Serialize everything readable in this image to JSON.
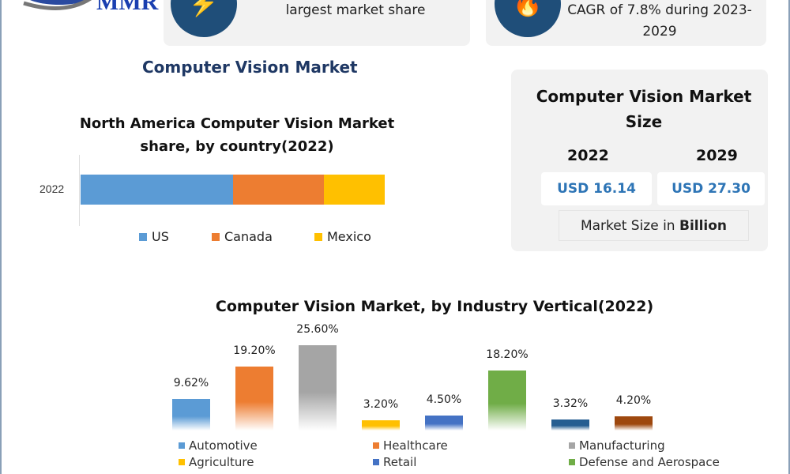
{
  "header": {
    "logo_text": "MMR",
    "card1": {
      "icon": "lightning-icon",
      "text": "largest market share"
    },
    "card2": {
      "icon": "flame-icon",
      "text_line1": "CAGR of 7.8% during 2023-",
      "text_line2": "2029"
    }
  },
  "main_title": "Computer Vision Market",
  "market_size": {
    "title_line1": "Computer Vision Market",
    "title_line2": "Size",
    "years": [
      "2022",
      "2029"
    ],
    "values": [
      "USD 16.14",
      "USD 27.30"
    ],
    "unit_prefix": "Market Size in ",
    "unit_bold": "Billion"
  },
  "chart_data": [
    {
      "type": "bar",
      "orientation": "horizontal-stacked",
      "title_line1": "North America Computer Vision Market",
      "title_line2": "share, by country(2022)",
      "categories": [
        "2022"
      ],
      "series": [
        {
          "name": "US",
          "values": [
            50
          ],
          "color": "#5b9bd5"
        },
        {
          "name": "Canada",
          "values": [
            30
          ],
          "color": "#ed7d31"
        },
        {
          "name": "Mexico",
          "values": [
            20
          ],
          "color": "#ffc000"
        }
      ],
      "legend": "bottom"
    },
    {
      "type": "bar",
      "title": "Computer Vision Market, by Industry Vertical(2022)",
      "categories": [
        "Automotive",
        "Healthcare",
        "Manufacturing",
        "Agriculture",
        "Retail",
        "Defense and Aerospace",
        "",
        ""
      ],
      "values": [
        9.62,
        19.2,
        25.6,
        3.2,
        4.5,
        18.2,
        3.32,
        4.2
      ],
      "labels": [
        "9.62%",
        "19.20%",
        "25.60%",
        "3.20%",
        "4.50%",
        "18.20%",
        "3.32%",
        "4.20%"
      ],
      "colors": [
        "#5b9bd5",
        "#ed7d31",
        "#a5a5a5",
        "#ffc000",
        "#4472c4",
        "#70ad47",
        "#255e91",
        "#9e480e"
      ],
      "legend": "bottom"
    }
  ]
}
